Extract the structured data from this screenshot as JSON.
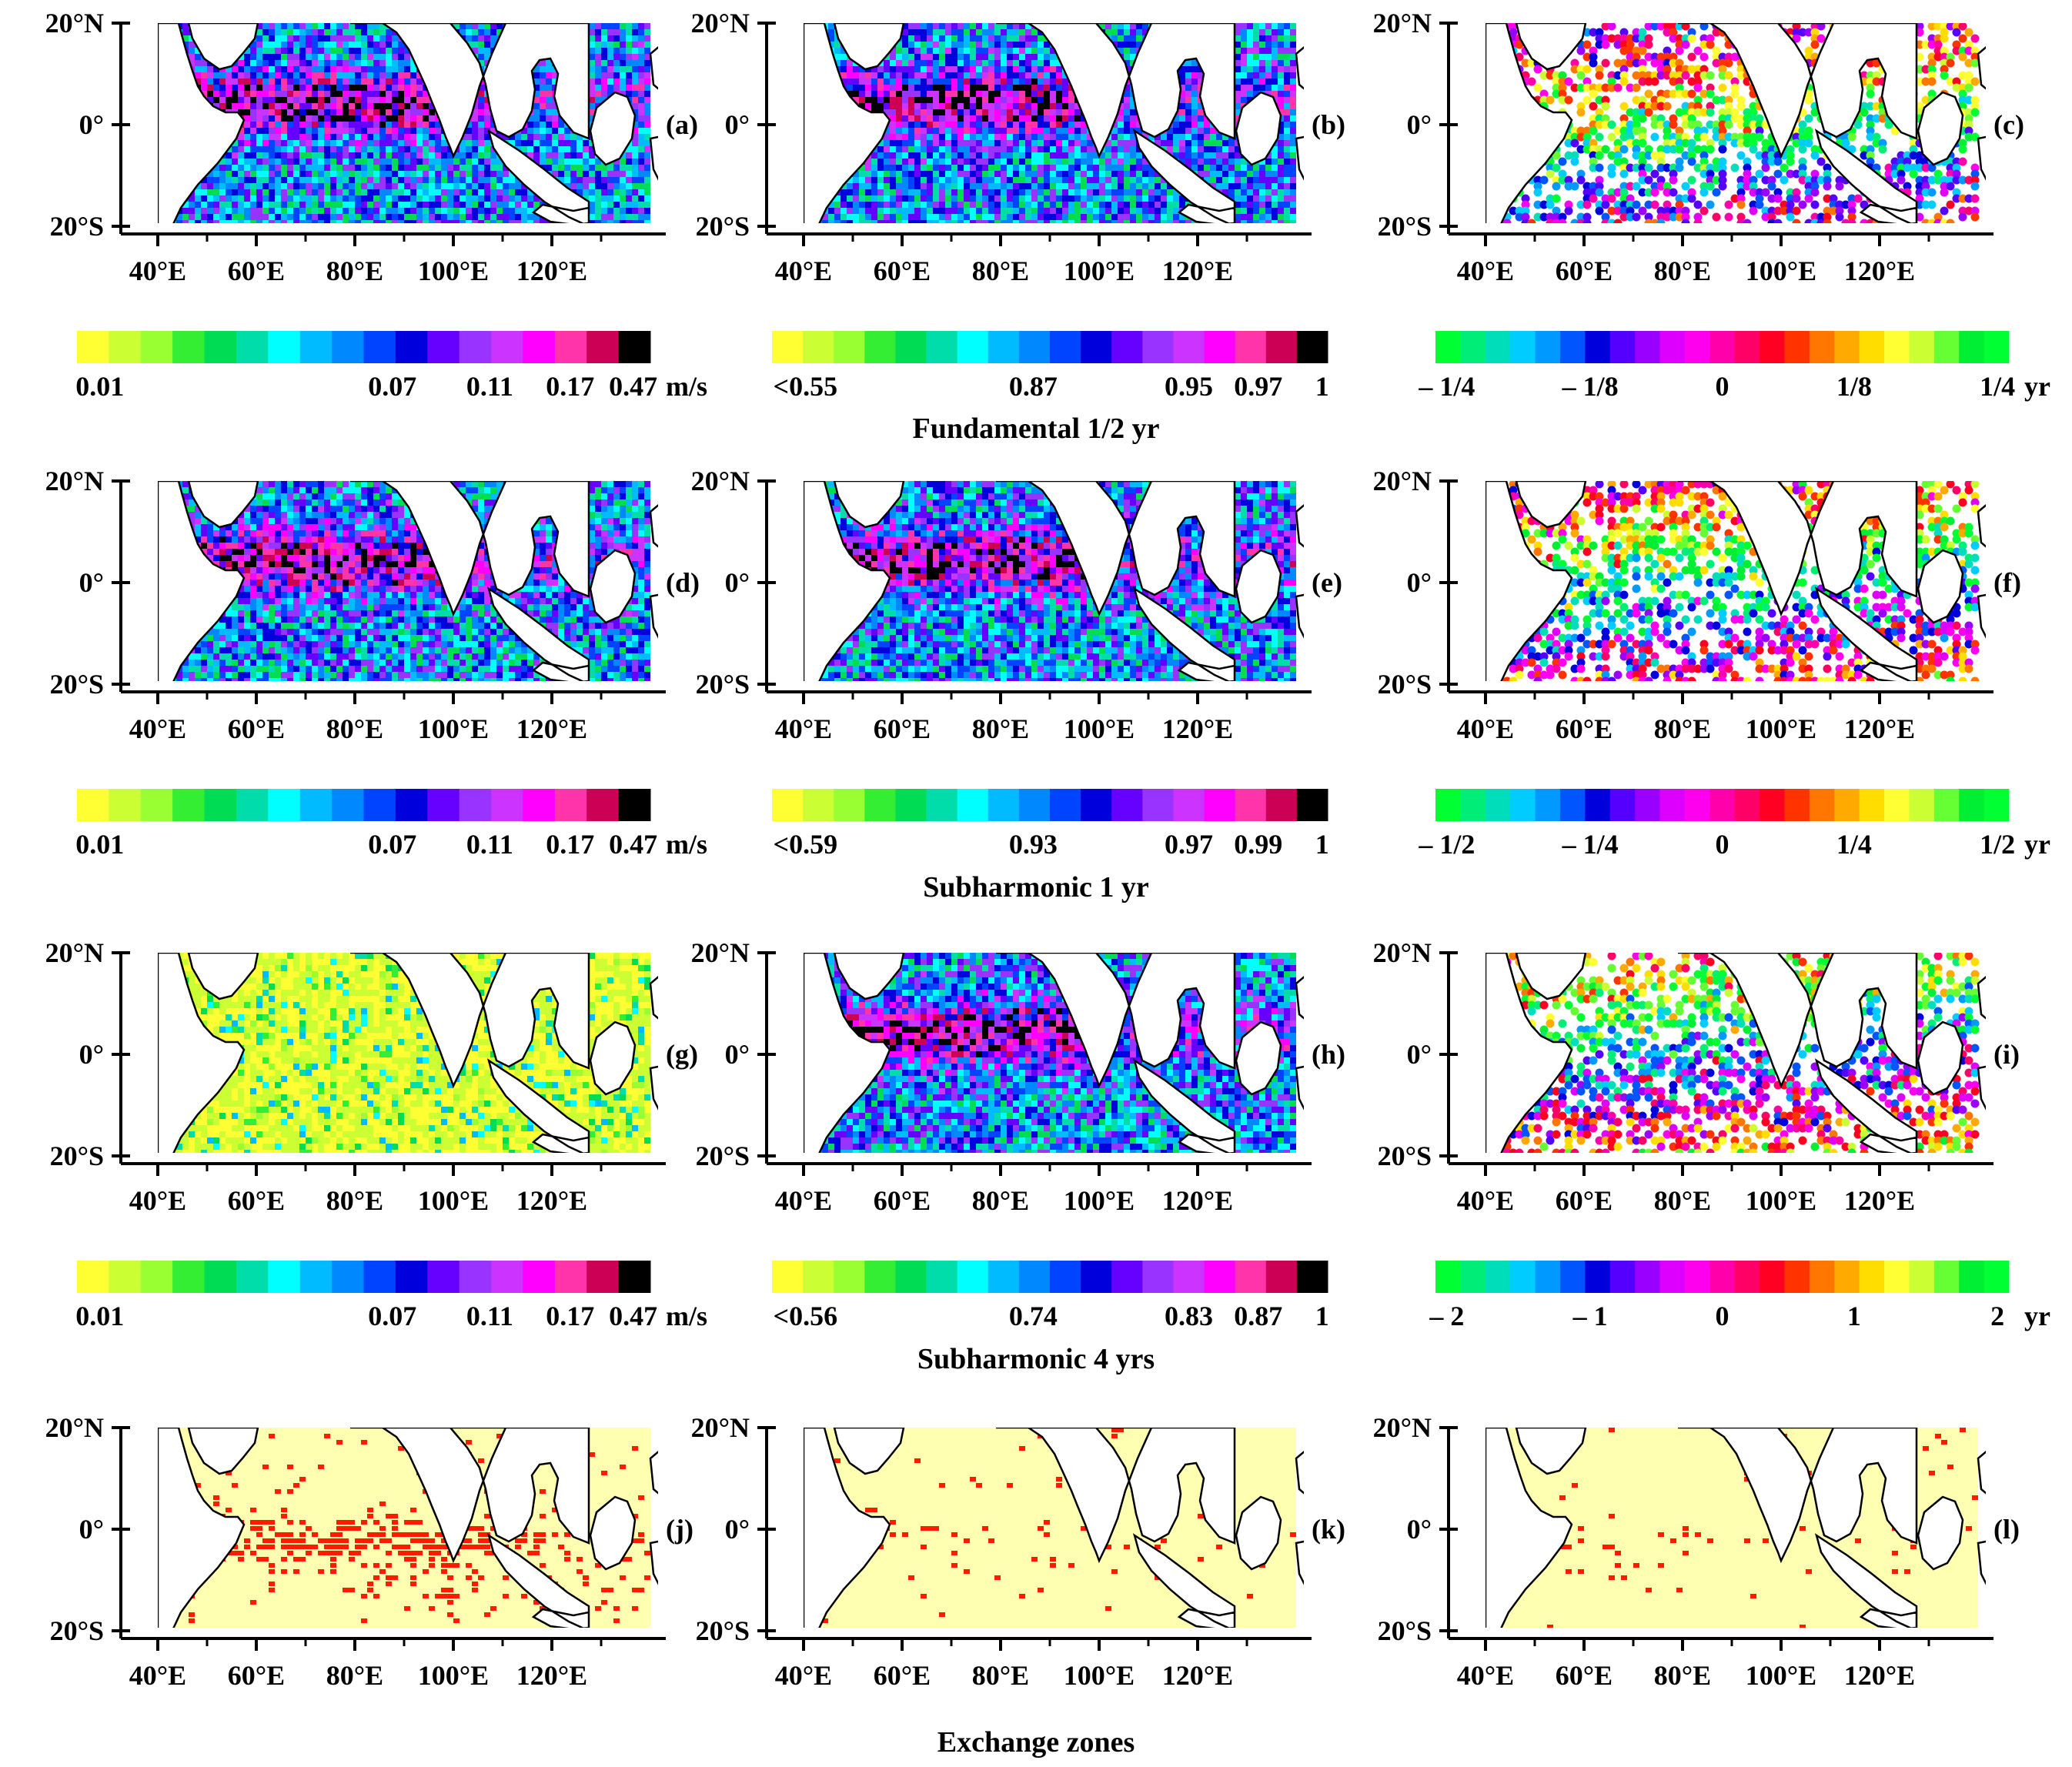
{
  "figure": {
    "panels": [
      {
        "id": "a",
        "letter": "(a)",
        "type": "amplitude",
        "row": 0,
        "col": 0
      },
      {
        "id": "b",
        "letter": "(b)",
        "type": "coherence",
        "row": 0,
        "col": 1
      },
      {
        "id": "c",
        "letter": "(c)",
        "type": "phase",
        "row": 0,
        "col": 2
      },
      {
        "id": "d",
        "letter": "(d)",
        "type": "amplitude",
        "row": 1,
        "col": 0
      },
      {
        "id": "e",
        "letter": "(e)",
        "type": "coherence",
        "row": 1,
        "col": 1
      },
      {
        "id": "f",
        "letter": "(f)",
        "type": "phase",
        "row": 1,
        "col": 2
      },
      {
        "id": "g",
        "letter": "(g)",
        "type": "amplitude-low",
        "row": 2,
        "col": 0
      },
      {
        "id": "h",
        "letter": "(h)",
        "type": "coherence",
        "row": 2,
        "col": 1
      },
      {
        "id": "i",
        "letter": "(i)",
        "type": "phase",
        "row": 2,
        "col": 2
      },
      {
        "id": "j",
        "letter": "(j)",
        "type": "exchange-dense",
        "row": 3,
        "col": 0
      },
      {
        "id": "k",
        "letter": "(k)",
        "type": "exchange-sparse",
        "row": 3,
        "col": 1
      },
      {
        "id": "l",
        "letter": "(l)",
        "type": "exchange-sparse",
        "row": 3,
        "col": 2
      }
    ],
    "lat_ticks": [
      "20°N",
      "0°",
      "20°S"
    ],
    "lon_ticks": [
      "40°E",
      "60°E",
      "80°E",
      "100°E",
      "120°E"
    ],
    "row_titles": [
      "Fundamental 1/2 yr",
      "Subharmonic 1 yr",
      "Subharmonic 4 yrs",
      "Exchange zones"
    ],
    "colorbars": [
      {
        "row": 0,
        "col": 0,
        "kind": "amp",
        "ticks": [
          "0.01",
          "0.07",
          "0.11",
          "0.17",
          "0.47"
        ],
        "unit": "m/s"
      },
      {
        "row": 0,
        "col": 1,
        "kind": "coh",
        "ticks": [
          "<0.55",
          "0.87",
          "0.95",
          "0.97",
          "1"
        ],
        "unit": ""
      },
      {
        "row": 0,
        "col": 2,
        "kind": "phase",
        "ticks": [
          "– 1/4",
          "– 1/8",
          "0",
          "1/8",
          "1/4"
        ],
        "unit": "yr"
      },
      {
        "row": 1,
        "col": 0,
        "kind": "amp",
        "ticks": [
          "0.01",
          "0.07",
          "0.11",
          "0.17",
          "0.47"
        ],
        "unit": "m/s"
      },
      {
        "row": 1,
        "col": 1,
        "kind": "coh",
        "ticks": [
          "<0.59",
          "0.93",
          "0.97",
          "0.99",
          "1"
        ],
        "unit": ""
      },
      {
        "row": 1,
        "col": 2,
        "kind": "phase",
        "ticks": [
          "– 1/2",
          "– 1/4",
          "0",
          "1/4",
          "1/2"
        ],
        "unit": "yr"
      },
      {
        "row": 2,
        "col": 0,
        "kind": "amp",
        "ticks": [
          "0.01",
          "0.07",
          "0.11",
          "0.17",
          "0.47"
        ],
        "unit": "m/s"
      },
      {
        "row": 2,
        "col": 1,
        "kind": "coh",
        "ticks": [
          "<0.56",
          "0.74",
          "0.83",
          "0.87",
          "1"
        ],
        "unit": ""
      },
      {
        "row": 2,
        "col": 2,
        "kind": "phase",
        "ticks": [
          "– 2",
          "– 1",
          "0",
          "1",
          "2"
        ],
        "unit": "yr"
      }
    ],
    "palettes": {
      "amp": [
        "#ffff33",
        "#ccff33",
        "#99ff33",
        "#33ee33",
        "#00dd55",
        "#00ddaa",
        "#00ffff",
        "#00bbff",
        "#0088ff",
        "#0044ff",
        "#0000dd",
        "#6600ff",
        "#9933ff",
        "#cc33ff",
        "#ff00ff",
        "#ff33aa",
        "#cc0055",
        "#000000"
      ],
      "phase": [
        "#00ff33",
        "#00ee77",
        "#00ddbb",
        "#00ccff",
        "#0099ff",
        "#0055ff",
        "#0000dd",
        "#5500ff",
        "#9900ff",
        "#dd00ff",
        "#ff00ee",
        "#ff00aa",
        "#ff0066",
        "#ff0022",
        "#ff3300",
        "#ff7700",
        "#ffaa00",
        "#ffdd00",
        "#ffff33",
        "#ccff33",
        "#66ff33",
        "#00ee33",
        "#00ff33"
      ],
      "exchange_bg": "#ffffb2",
      "exchange_mark": "#ff1a00"
    }
  }
}
